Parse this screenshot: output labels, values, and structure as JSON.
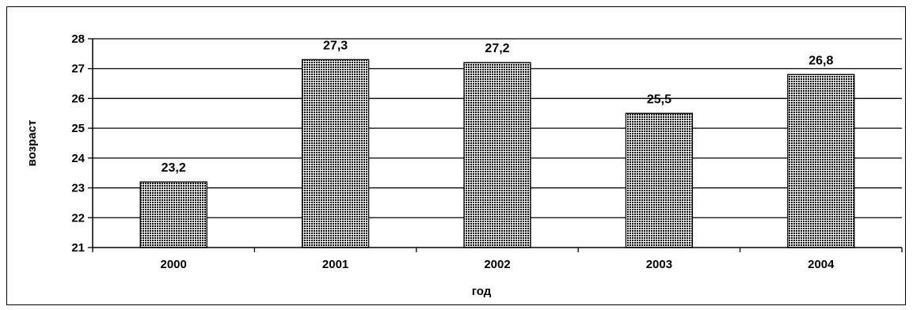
{
  "chart_data": {
    "type": "bar",
    "title": "",
    "categories": [
      "2000",
      "2001",
      "2002",
      "2003",
      "2004"
    ],
    "values": [
      23.2,
      27.3,
      27.2,
      25.5,
      26.8
    ],
    "data_labels": [
      "23,2",
      "27,3",
      "27,2",
      "25,5",
      "26,8"
    ],
    "xlabel": "год",
    "ylabel": "возраст",
    "ylim": [
      21,
      28
    ],
    "yticks": [
      "21",
      "22",
      "23",
      "24",
      "25",
      "26",
      "27",
      "28"
    ],
    "grid": true,
    "legend": "none",
    "colors": {
      "bar_fill": "#ffffff",
      "bar_pattern": "#000000",
      "bar_stroke": "#000000",
      "grid": "#000000",
      "axis": "#000000"
    }
  }
}
